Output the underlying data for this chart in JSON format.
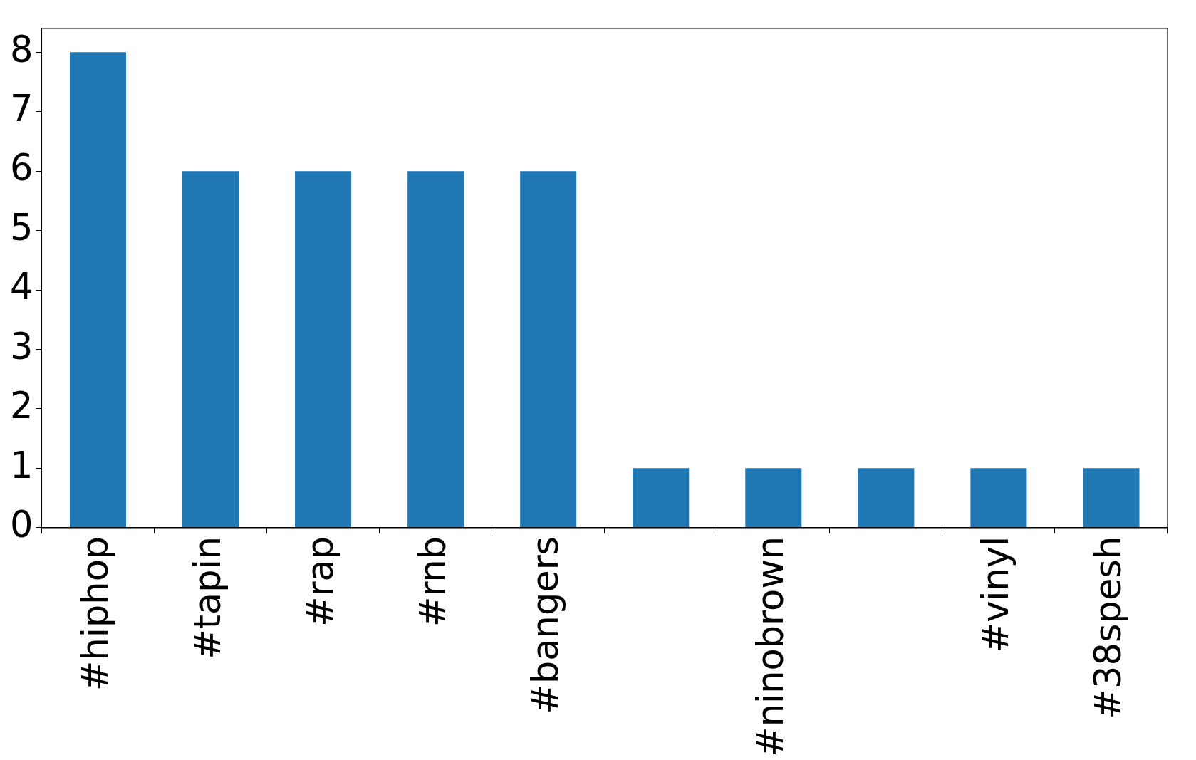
{
  "chart_data": {
    "type": "bar",
    "categories": [
      "#hiphop",
      "#tapin",
      "#rap",
      "#rnb",
      "#bangers",
      null,
      "#ninobrown",
      null,
      "#vinyl",
      "#38spesh"
    ],
    "values": [
      8,
      6,
      6,
      6,
      6,
      1,
      1,
      1,
      1,
      1
    ],
    "color": "#1f77b4",
    "ylim": [
      0,
      8.4
    ],
    "yticks": [
      0,
      1,
      2,
      3,
      4,
      5,
      6,
      7,
      8
    ],
    "grid": false,
    "legend": false
  }
}
